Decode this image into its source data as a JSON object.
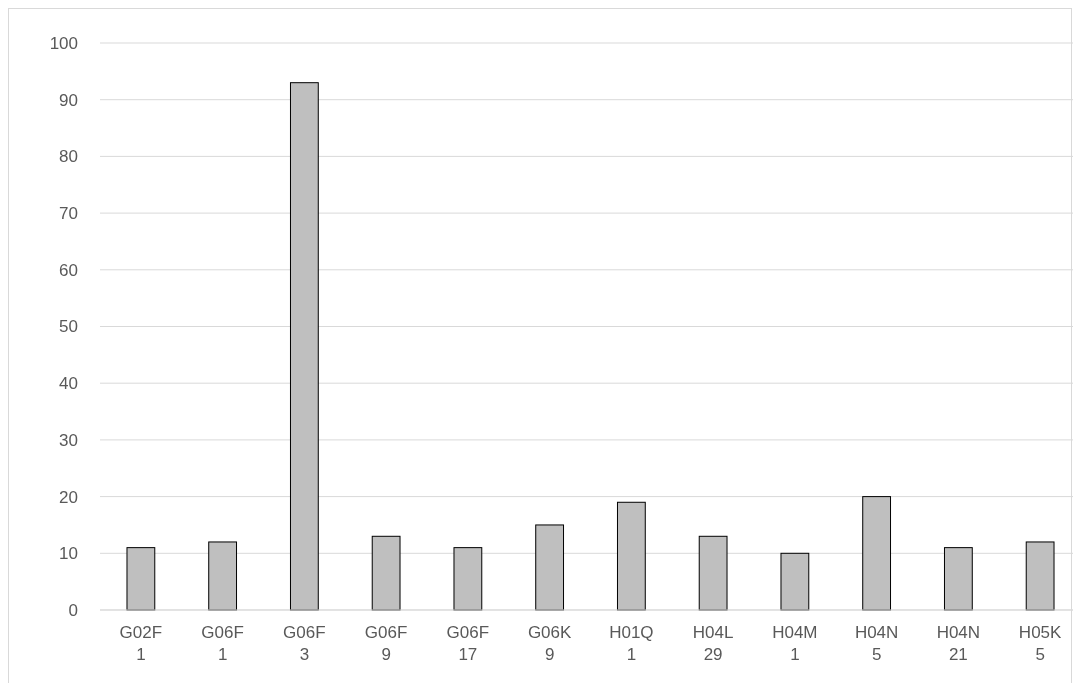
{
  "chart_data": {
    "type": "bar",
    "categories": [
      "G02F 1",
      "G06F 1",
      "G06F 3",
      "G06F 9",
      "G06F 17",
      "G06K 9",
      "H01Q 1",
      "H04L 29",
      "H04M 1",
      "H04N 5",
      "H04N 21",
      "H05K 5"
    ],
    "values": [
      11,
      12,
      93,
      13,
      11,
      15,
      19,
      13,
      10,
      20,
      11,
      12
    ],
    "color": "#bfbfbf",
    "ylim": [
      0,
      100
    ],
    "yticks": [
      0,
      10,
      20,
      30,
      40,
      50,
      60,
      70,
      80,
      90,
      100
    ],
    "grid": "y"
  }
}
